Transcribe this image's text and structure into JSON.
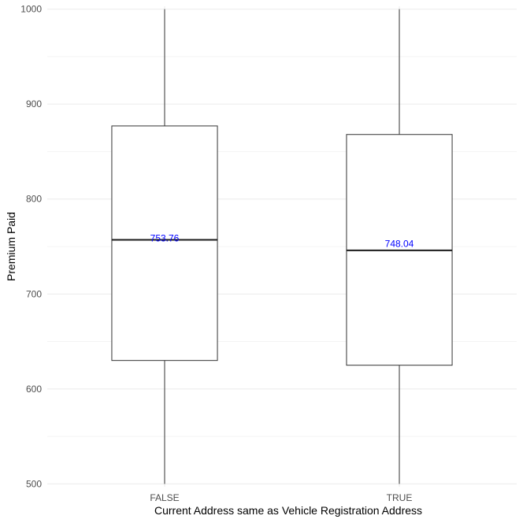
{
  "chart_data": {
    "type": "box",
    "title": "",
    "xlabel": "Current Address same as Vehicle Registration Address",
    "ylabel": "Premium Paid",
    "categories": [
      "FALSE",
      "TRUE"
    ],
    "ylim": [
      497,
      1003
    ],
    "yticks": [
      500,
      600,
      700,
      800,
      900,
      1000
    ],
    "grid": true,
    "boxes": [
      {
        "category": "FALSE",
        "min": 500,
        "q1": 630,
        "median": 757,
        "q3": 877,
        "max": 1000,
        "mean": 753.76,
        "mean_label": "753.76"
      },
      {
        "category": "TRUE",
        "min": 500,
        "q1": 625,
        "median": 746,
        "q3": 868,
        "max": 1000,
        "mean": 748.04,
        "mean_label": "748.04"
      }
    ],
    "colors": {
      "box_stroke": "#333333",
      "median": "#1a1a1a",
      "label": "#0000ff",
      "grid_major": "#ebebeb",
      "grid_minor": "#f4f4f4"
    }
  }
}
